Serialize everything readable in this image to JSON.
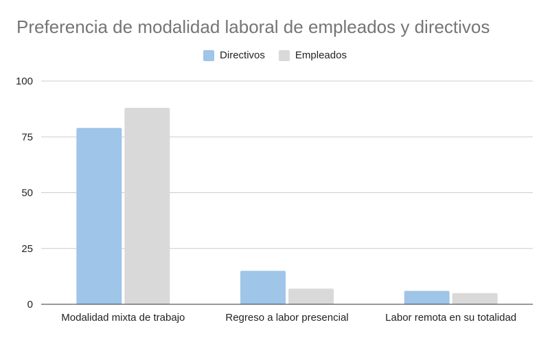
{
  "chart_data": {
    "type": "bar",
    "title": "Preferencia de modalidad laboral de empleados y directivos",
    "categories": [
      "Modalidad mixta de trabajo",
      "Regreso a labor presencial",
      "Labor remota en su totalidad"
    ],
    "series": [
      {
        "name": "Directivos",
        "values": [
          79,
          15,
          6
        ],
        "color": "#9fc5e8"
      },
      {
        "name": "Empleados",
        "values": [
          88,
          7,
          5
        ],
        "color": "#d9d9d9"
      }
    ],
    "yticks": [
      "0",
      "25",
      "50",
      "75",
      "100"
    ],
    "ylim": [
      0,
      100
    ],
    "grid": true,
    "legend_position": "top-center"
  }
}
